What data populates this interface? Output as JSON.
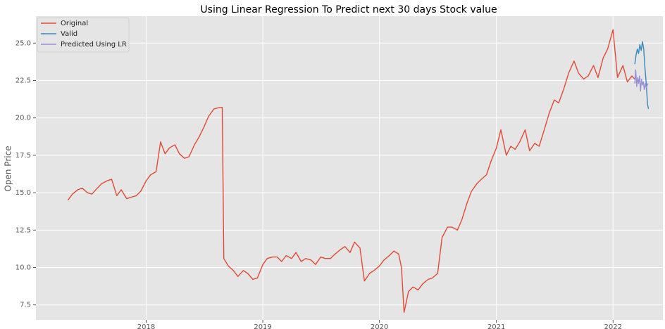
{
  "chart_data": {
    "type": "line",
    "title": "Using Linear Regression To Predict next 30 days Stock value",
    "xlabel": "",
    "ylabel": "Open Price",
    "x_axis": "date",
    "xlim": [
      "2017-01-21",
      "2022-06-06"
    ],
    "ylim": [
      6.5,
      26.8
    ],
    "y_ticks": [
      7.5,
      10.0,
      12.5,
      15.0,
      17.5,
      20.0,
      22.5,
      25.0
    ],
    "y_tick_labels": [
      "7.5",
      "10.0",
      "12.5",
      "15.0",
      "17.5",
      "20.0",
      "22.5",
      "25.0"
    ],
    "x_ticks": [
      "2018-01-01",
      "2019-01-01",
      "2020-01-01",
      "2021-01-01",
      "2022-01-01"
    ],
    "x_tick_labels": [
      "2018",
      "2019",
      "2020",
      "2021",
      "2022"
    ],
    "grid": true,
    "legend_position": "top-left",
    "series": [
      {
        "name": "Original",
        "color": "#e24a33",
        "x": [
          "2017-05-01",
          "2017-05-15",
          "2017-06-01",
          "2017-06-15",
          "2017-07-01",
          "2017-07-15",
          "2017-08-01",
          "2017-08-15",
          "2017-09-01",
          "2017-09-15",
          "2017-10-01",
          "2017-10-15",
          "2017-11-01",
          "2017-11-15",
          "2017-12-01",
          "2017-12-15",
          "2018-01-01",
          "2018-01-15",
          "2018-02-01",
          "2018-02-15",
          "2018-03-01",
          "2018-03-15",
          "2018-04-01",
          "2018-04-15",
          "2018-05-01",
          "2018-05-15",
          "2018-06-01",
          "2018-06-15",
          "2018-07-01",
          "2018-07-15",
          "2018-08-01",
          "2018-08-20",
          "2018-08-27",
          "2018-09-01",
          "2018-09-15",
          "2018-10-01",
          "2018-10-15",
          "2018-11-01",
          "2018-11-15",
          "2018-12-01",
          "2018-12-15",
          "2019-01-01",
          "2019-01-15",
          "2019-02-01",
          "2019-02-15",
          "2019-03-01",
          "2019-03-15",
          "2019-04-01",
          "2019-04-15",
          "2019-05-01",
          "2019-05-15",
          "2019-06-01",
          "2019-06-15",
          "2019-07-01",
          "2019-07-15",
          "2019-08-01",
          "2019-08-15",
          "2019-09-01",
          "2019-09-15",
          "2019-10-01",
          "2019-10-15",
          "2019-11-01",
          "2019-11-15",
          "2019-12-01",
          "2019-12-15",
          "2020-01-01",
          "2020-01-15",
          "2020-02-01",
          "2020-02-15",
          "2020-03-01",
          "2020-03-10",
          "2020-03-18",
          "2020-04-01",
          "2020-04-15",
          "2020-05-01",
          "2020-05-15",
          "2020-06-01",
          "2020-06-15",
          "2020-07-01",
          "2020-07-15",
          "2020-08-01",
          "2020-08-15",
          "2020-09-01",
          "2020-09-15",
          "2020-10-01",
          "2020-10-15",
          "2020-11-01",
          "2020-11-15",
          "2020-12-01",
          "2020-12-15",
          "2021-01-01",
          "2021-01-15",
          "2021-02-01",
          "2021-02-15",
          "2021-03-01",
          "2021-03-15",
          "2021-04-01",
          "2021-04-15",
          "2021-05-01",
          "2021-05-15",
          "2021-06-01",
          "2021-06-15",
          "2021-07-01",
          "2021-07-15",
          "2021-08-01",
          "2021-08-15",
          "2021-09-01",
          "2021-09-15",
          "2021-10-01",
          "2021-10-15",
          "2021-11-01",
          "2021-11-15",
          "2021-12-01",
          "2021-12-15",
          "2022-01-01",
          "2022-01-15",
          "2022-02-01",
          "2022-02-15",
          "2022-03-01",
          "2022-03-10"
        ],
        "values": [
          14.5,
          14.9,
          15.2,
          15.3,
          15.0,
          14.9,
          15.3,
          15.6,
          15.8,
          15.9,
          14.8,
          15.2,
          14.6,
          14.7,
          14.8,
          15.1,
          15.8,
          16.2,
          16.4,
          18.4,
          17.6,
          18.0,
          18.2,
          17.6,
          17.3,
          17.4,
          18.2,
          18.7,
          19.4,
          20.1,
          20.6,
          20.7,
          20.7,
          10.6,
          10.1,
          9.8,
          9.4,
          9.8,
          9.6,
          9.2,
          9.3,
          10.2,
          10.6,
          10.7,
          10.7,
          10.4,
          10.8,
          10.6,
          11.0,
          10.4,
          10.6,
          10.5,
          10.2,
          10.7,
          10.6,
          10.6,
          10.9,
          11.2,
          11.4,
          11.0,
          11.7,
          11.3,
          9.1,
          9.6,
          9.8,
          10.1,
          10.5,
          10.8,
          11.1,
          10.9,
          10.0,
          7.0,
          8.4,
          8.7,
          8.5,
          8.9,
          9.2,
          9.3,
          9.6,
          12.0,
          12.7,
          12.7,
          12.5,
          13.2,
          14.3,
          15.1,
          15.6,
          15.9,
          16.2,
          17.1,
          18.0,
          19.2,
          17.5,
          18.1,
          17.9,
          18.4,
          19.2,
          17.8,
          18.3,
          18.1,
          19.3,
          20.3,
          21.2,
          21.0,
          22.0,
          23.0,
          23.8,
          23.0,
          22.6,
          22.8,
          23.5,
          22.7,
          24.0,
          24.6,
          25.9,
          22.7,
          23.5,
          22.4,
          22.8,
          22.6
        ]
      },
      {
        "name": "Valid",
        "color": "#348abd",
        "x": [
          "2022-03-10",
          "2022-03-14",
          "2022-03-18",
          "2022-03-22",
          "2022-03-26",
          "2022-03-30",
          "2022-04-03",
          "2022-04-07",
          "2022-04-11",
          "2022-04-15",
          "2022-04-19",
          "2022-04-22"
        ],
        "values": [
          23.6,
          24.2,
          24.6,
          24.3,
          24.9,
          24.5,
          25.1,
          24.6,
          23.3,
          22.3,
          20.9,
          20.6
        ]
      },
      {
        "name": "Predicted Using LR",
        "color": "#988ed5",
        "x": [
          "2022-03-10",
          "2022-03-13",
          "2022-03-16",
          "2022-03-19",
          "2022-03-22",
          "2022-03-25",
          "2022-03-28",
          "2022-03-31",
          "2022-04-03",
          "2022-04-06",
          "2022-04-09",
          "2022-04-12",
          "2022-04-15",
          "2022-04-18",
          "2022-04-21"
        ],
        "values": [
          22.3,
          23.2,
          22.1,
          22.7,
          22.3,
          22.8,
          21.8,
          22.6,
          22.2,
          22.4,
          21.9,
          22.3,
          22.0,
          22.2,
          22.3
        ]
      }
    ]
  }
}
